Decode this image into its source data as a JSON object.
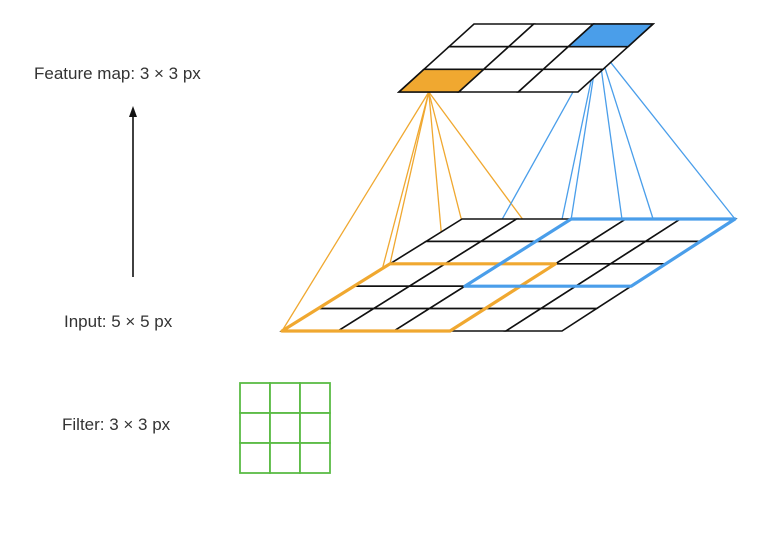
{
  "labels": {
    "feature_map": "Feature map: 3 × 3 px",
    "input": "Input: 5 × 5 px",
    "filter": "Filter: 3 × 3 px"
  },
  "grids": {
    "feature_map": {
      "rows": 3,
      "cols": 3
    },
    "input": {
      "rows": 5,
      "cols": 5
    },
    "filter": {
      "rows": 3,
      "cols": 3
    }
  },
  "highlights": {
    "feature_map": [
      {
        "row": 2,
        "col": 0,
        "color_key": "orange"
      },
      {
        "row": 0,
        "col": 2,
        "color_key": "blue"
      }
    ],
    "input_windows": [
      {
        "row": 2,
        "col": 0,
        "size": 3,
        "color_key": "orange"
      },
      {
        "row": 0,
        "col": 2,
        "size": 3,
        "color_key": "blue"
      }
    ]
  },
  "colors": {
    "orange": "#F0A830",
    "blue": "#4A9EEA",
    "green": "#5BBB45",
    "grid": "#111111",
    "arrow": "#111111",
    "text": "#333333"
  }
}
